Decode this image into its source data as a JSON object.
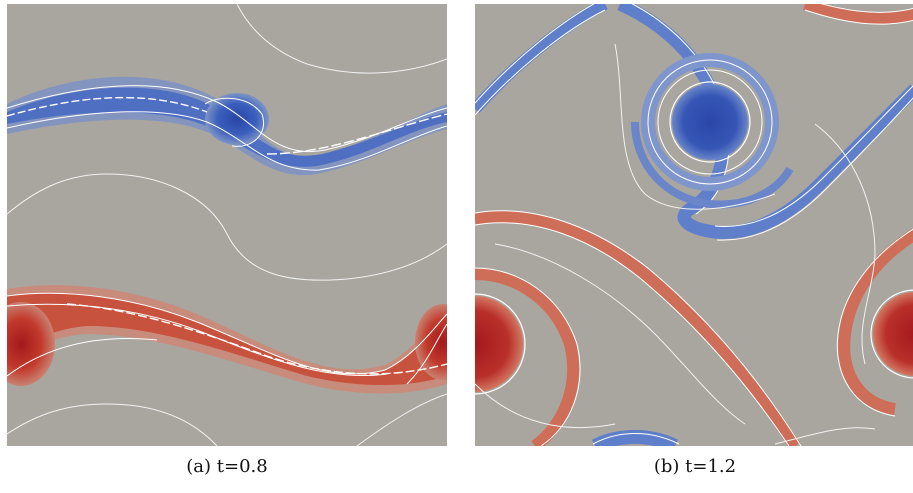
{
  "figure": {
    "panels": [
      {
        "tag": "(a)",
        "caption_text": "(a) t=0.8"
      },
      {
        "tag": "(b)",
        "caption_text": "(b) t=1.2"
      }
    ],
    "colors": {
      "background": "#a9a69f",
      "negative_core": "#2b4aa8",
      "negative_edge": "#5f7ecb",
      "positive_core": "#a81b1f",
      "positive_edge": "#d8705a",
      "contour": "#ffffff"
    }
  }
}
